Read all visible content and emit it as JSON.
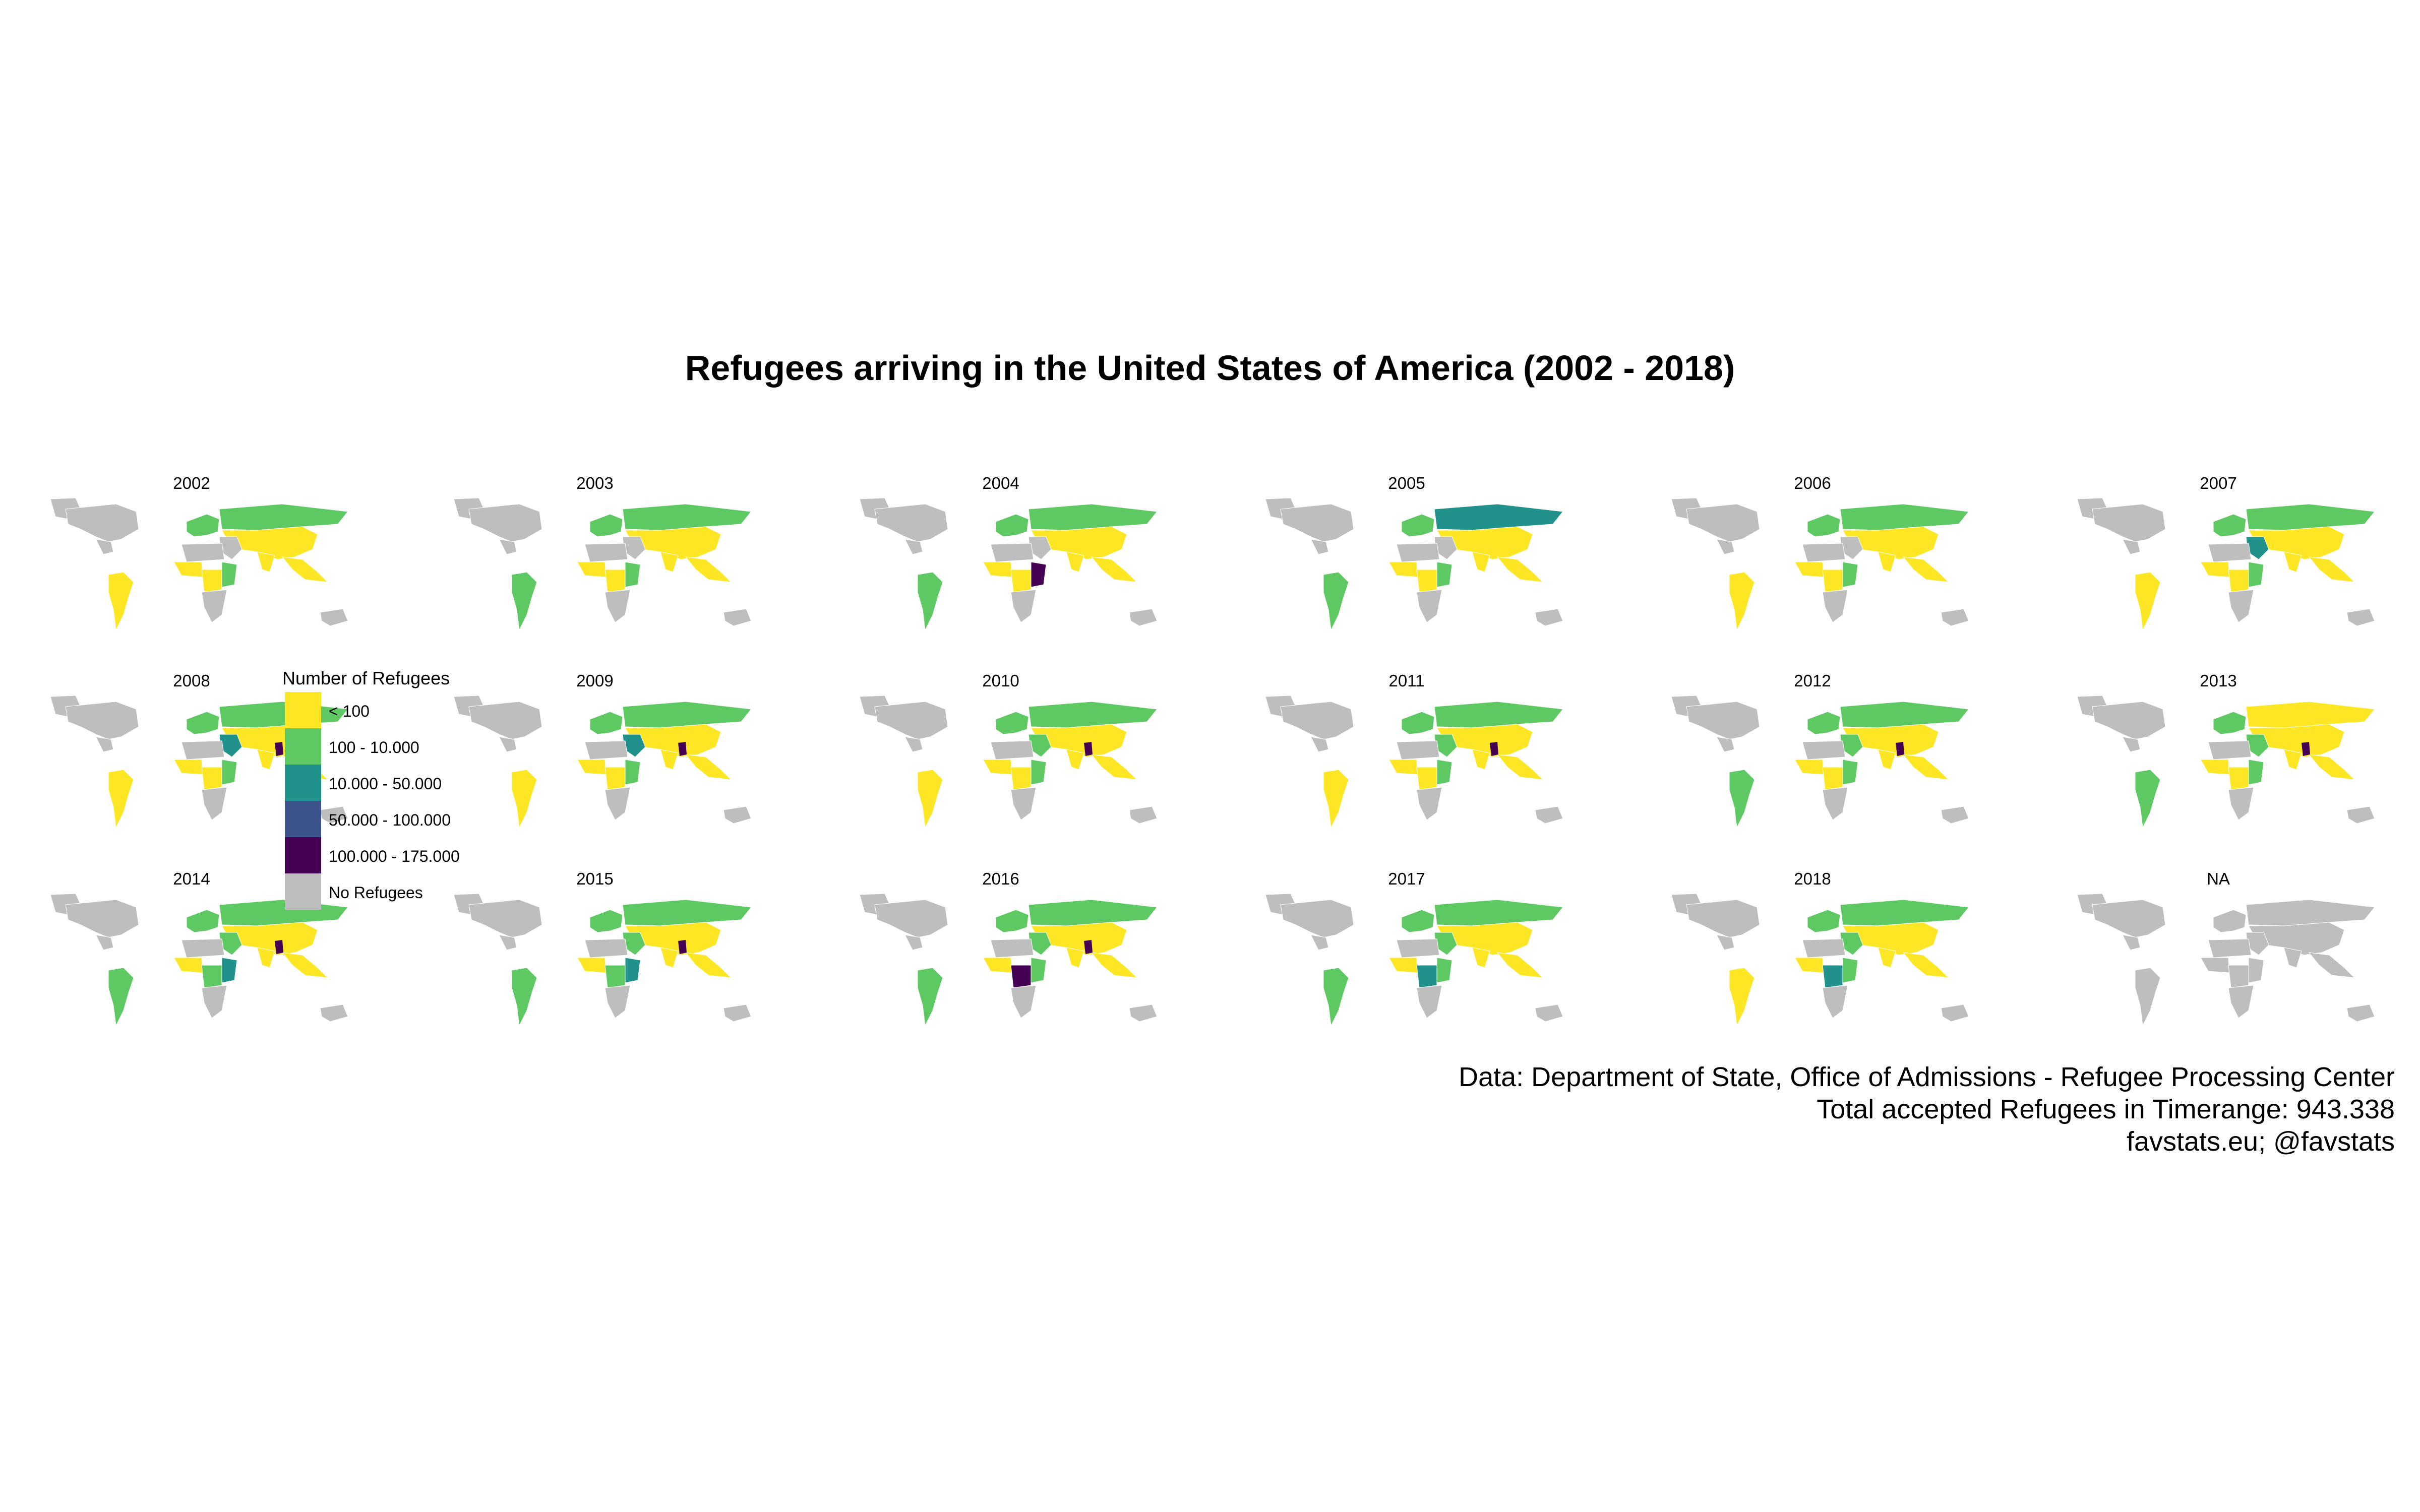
{
  "title": "Refugees arriving in the United States of America (2002 - 2018)",
  "legend": {
    "title": "Number of Refugees",
    "items": [
      {
        "label": "< 100",
        "color": "#fde725"
      },
      {
        "label": "100 - 10.000",
        "color": "#5ec962"
      },
      {
        "label": "10.000 - 50.000",
        "color": "#21918c"
      },
      {
        "label": "50.000 - 100.000",
        "color": "#3b528b"
      },
      {
        "label": "100.000 - 175.000",
        "color": "#440154"
      },
      {
        "label": "No Refugees",
        "color": "#bebebe"
      }
    ]
  },
  "panels": [
    {
      "label": "2002",
      "europe": "mid",
      "russia": "mid",
      "asia": "low",
      "mideast": "none",
      "westafrica": "low",
      "eastafrica": "mid",
      "centralafrica": "low",
      "seasia": "low",
      "latam": "low",
      "highlight": "none"
    },
    {
      "label": "2003",
      "europe": "mid",
      "russia": "mid",
      "asia": "low",
      "mideast": "none",
      "westafrica": "low",
      "eastafrica": "mid",
      "centralafrica": "low",
      "seasia": "low",
      "latam": "mid",
      "highlight": "none"
    },
    {
      "label": "2004",
      "europe": "mid",
      "russia": "mid",
      "asia": "low",
      "mideast": "none",
      "westafrica": "low",
      "eastafrica": "vhigh",
      "centralafrica": "low",
      "seasia": "low",
      "latam": "mid",
      "highlight": "none"
    },
    {
      "label": "2005",
      "europe": "mid",
      "russia": "high",
      "asia": "low",
      "mideast": "none",
      "westafrica": "low",
      "eastafrica": "mid",
      "centralafrica": "low",
      "seasia": "low",
      "latam": "mid",
      "highlight": "none"
    },
    {
      "label": "2006",
      "europe": "mid",
      "russia": "mid",
      "asia": "low",
      "mideast": "none",
      "westafrica": "low",
      "eastafrica": "mid",
      "centralafrica": "low",
      "seasia": "low",
      "latam": "low",
      "highlight": "none"
    },
    {
      "label": "2007",
      "europe": "mid",
      "russia": "mid",
      "asia": "low",
      "mideast": "high",
      "westafrica": "low",
      "eastafrica": "mid",
      "centralafrica": "low",
      "seasia": "low",
      "latam": "low",
      "highlight": "none"
    },
    {
      "label": "2008",
      "europe": "mid",
      "russia": "mid",
      "asia": "low",
      "mideast": "high",
      "westafrica": "low",
      "eastafrica": "mid",
      "centralafrica": "low",
      "seasia": "low",
      "latam": "low",
      "highlight": "vhigh"
    },
    {
      "label": "2009",
      "europe": "mid",
      "russia": "mid",
      "asia": "low",
      "mideast": "high",
      "westafrica": "low",
      "eastafrica": "mid",
      "centralafrica": "low",
      "seasia": "low",
      "latam": "low",
      "highlight": "vhigh"
    },
    {
      "label": "2010",
      "europe": "mid",
      "russia": "mid",
      "asia": "low",
      "mideast": "mid",
      "westafrica": "low",
      "eastafrica": "mid",
      "centralafrica": "low",
      "seasia": "low",
      "latam": "low",
      "highlight": "vhigh"
    },
    {
      "label": "2011",
      "europe": "mid",
      "russia": "mid",
      "asia": "low",
      "mideast": "mid",
      "westafrica": "low",
      "eastafrica": "mid",
      "centralafrica": "low",
      "seasia": "low",
      "latam": "low",
      "highlight": "vhigh"
    },
    {
      "label": "2012",
      "europe": "mid",
      "russia": "mid",
      "asia": "low",
      "mideast": "mid",
      "westafrica": "low",
      "eastafrica": "mid",
      "centralafrica": "low",
      "seasia": "low",
      "latam": "mid",
      "highlight": "vhigh"
    },
    {
      "label": "2013",
      "europe": "mid",
      "russia": "low",
      "asia": "low",
      "mideast": "mid",
      "westafrica": "low",
      "eastafrica": "mid",
      "centralafrica": "low",
      "seasia": "low",
      "latam": "mid",
      "highlight": "vhigh"
    },
    {
      "label": "2014",
      "europe": "mid",
      "russia": "mid",
      "asia": "low",
      "mideast": "mid",
      "westafrica": "low",
      "eastafrica": "high",
      "centralafrica": "mid",
      "seasia": "low",
      "latam": "mid",
      "highlight": "vhigh"
    },
    {
      "label": "2015",
      "europe": "mid",
      "russia": "mid",
      "asia": "low",
      "mideast": "mid",
      "westafrica": "low",
      "eastafrica": "high",
      "centralafrica": "mid",
      "seasia": "low",
      "latam": "mid",
      "highlight": "vhigh"
    },
    {
      "label": "2016",
      "europe": "mid",
      "russia": "mid",
      "asia": "low",
      "mideast": "mid",
      "westafrica": "low",
      "eastafrica": "mid",
      "centralafrica": "vhigh",
      "seasia": "low",
      "latam": "mid",
      "highlight": "vhigh"
    },
    {
      "label": "2017",
      "europe": "mid",
      "russia": "mid",
      "asia": "low",
      "mideast": "mid",
      "westafrica": "low",
      "eastafrica": "mid",
      "centralafrica": "high",
      "seasia": "low",
      "latam": "mid",
      "highlight": "none"
    },
    {
      "label": "2018",
      "europe": "mid",
      "russia": "mid",
      "asia": "low",
      "mideast": "mid",
      "westafrica": "low",
      "eastafrica": "mid",
      "centralafrica": "high",
      "seasia": "low",
      "latam": "low",
      "highlight": "none"
    },
    {
      "label": "NA",
      "europe": "none",
      "russia": "none",
      "asia": "none",
      "mideast": "none",
      "westafrica": "none",
      "eastafrica": "none",
      "centralafrica": "none",
      "seasia": "none",
      "latam": "none",
      "highlight": "none"
    }
  ],
  "caption": {
    "line1": "Data: Department of State, Office of Admissions - Refugee Processing Center",
    "line2": "Total accepted Refugees in Timerange: 943.338",
    "line3": "favstats.eu; @favstats"
  }
}
